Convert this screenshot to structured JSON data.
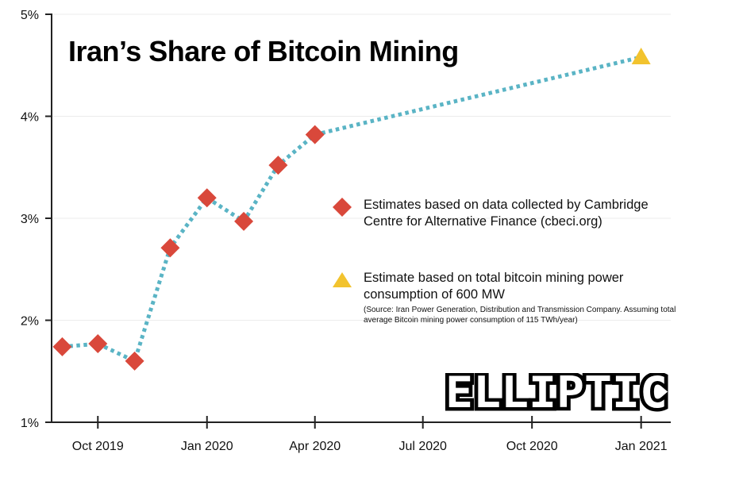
{
  "chart_data": {
    "type": "scatter",
    "title": "Iran’s Share of Bitcoin Mining",
    "xlabel": "",
    "ylabel": "",
    "x_ticks": [
      "Oct 2019",
      "Jan 2020",
      "Apr 2020",
      "Jul 2020",
      "Oct 2020",
      "Jan 2021"
    ],
    "x_range": [
      "2019-08-23",
      "2021-01-26"
    ],
    "y_ticks": [
      "1%",
      "2%",
      "3%",
      "4%",
      "5%"
    ],
    "ylim": [
      1,
      5
    ],
    "y_unit": "%",
    "grid": "horizontal",
    "series": [
      {
        "name": "Estimates based on data collected by Cambridge Centre for Alternative Finance (cbeci.org)",
        "marker": "diamond",
        "color": "#d9483b",
        "points": [
          {
            "x": "2019-09-01",
            "y": 1.74
          },
          {
            "x": "2019-10-01",
            "y": 1.77
          },
          {
            "x": "2019-11-01",
            "y": 1.6
          },
          {
            "x": "2019-12-01",
            "y": 2.71
          },
          {
            "x": "2020-01-01",
            "y": 3.2
          },
          {
            "x": "2020-02-01",
            "y": 2.97
          },
          {
            "x": "2020-03-01",
            "y": 3.52
          },
          {
            "x": "2020-04-01",
            "y": 3.82
          }
        ]
      },
      {
        "name": "Estimate based on total bitcoin mining power consumption of 600 MW",
        "marker": "triangle",
        "color": "#f2c32e",
        "points": [
          {
            "x": "2021-01-01",
            "y": 4.58
          }
        ]
      }
    ],
    "connector": {
      "style": "dotted",
      "color": "#5ab4c5"
    },
    "legend": [
      {
        "marker": "diamond",
        "text": "Estimates based on data collected by Cambridge Centre for Alternative Finance (cbeci.org)"
      },
      {
        "marker": "triangle",
        "text": "Estimate based on total bitcoin mining power consumption of 600 MW",
        "note": "(Source: Iran Power Generation, Distribution and Transmission Company. Assuming total average Bitcoin mining power consumption of 115 TWh/year)"
      }
    ]
  },
  "logo": {
    "text": "ELLIPTIC"
  }
}
